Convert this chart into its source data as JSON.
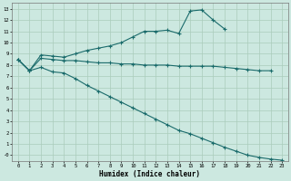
{
  "xlabel": "Humidex (Indice chaleur)",
  "bg_color": "#cce8e0",
  "grid_color": "#aaccbb",
  "line_color": "#1a6b6b",
  "xlim": [
    -0.5,
    23.5
  ],
  "ylim": [
    -0.5,
    13.5
  ],
  "xticks": [
    0,
    1,
    2,
    3,
    4,
    5,
    6,
    7,
    8,
    9,
    10,
    11,
    12,
    13,
    14,
    15,
    16,
    17,
    18,
    19,
    20,
    21,
    22,
    23
  ],
  "yticks": [
    0,
    1,
    2,
    3,
    4,
    5,
    6,
    7,
    8,
    9,
    10,
    11,
    12,
    13
  ],
  "ytick_labels": [
    "-0",
    "1",
    "2",
    "3",
    "4",
    "5",
    "6",
    "7",
    "8",
    "9",
    "10",
    "11",
    "12",
    "13"
  ],
  "line1_x": [
    0,
    1,
    2,
    3,
    4,
    5,
    6,
    7,
    8,
    9,
    10,
    11,
    12,
    13,
    14,
    15,
    16,
    17,
    18
  ],
  "line1_y": [
    8.5,
    7.5,
    8.9,
    8.8,
    8.7,
    9.0,
    9.3,
    9.5,
    9.7,
    10.0,
    10.5,
    11.0,
    11.0,
    11.1,
    10.8,
    12.8,
    12.9,
    12.0,
    11.2
  ],
  "line2_x": [
    0,
    1,
    2,
    3,
    4,
    5,
    6,
    7,
    8,
    9,
    10,
    11,
    12,
    13,
    14,
    15,
    16,
    17,
    18,
    19,
    20,
    21,
    22
  ],
  "line2_y": [
    8.5,
    7.5,
    8.6,
    8.5,
    8.4,
    8.4,
    8.3,
    8.2,
    8.2,
    8.1,
    8.1,
    8.0,
    8.0,
    8.0,
    7.9,
    7.9,
    7.9,
    7.9,
    7.8,
    7.7,
    7.6,
    7.5,
    7.5
  ],
  "line3_x": [
    0,
    1,
    2,
    3,
    4,
    5,
    6,
    7,
    8,
    9,
    10,
    11,
    12,
    13,
    14,
    15,
    16,
    17,
    18,
    19,
    20,
    21,
    22,
    23
  ],
  "line3_y": [
    8.5,
    7.5,
    7.8,
    7.4,
    7.3,
    6.8,
    6.2,
    5.7,
    5.2,
    4.7,
    4.2,
    3.7,
    3.2,
    2.7,
    2.2,
    1.9,
    1.5,
    1.1,
    0.7,
    0.35,
    0.0,
    -0.2,
    -0.35,
    -0.45
  ]
}
